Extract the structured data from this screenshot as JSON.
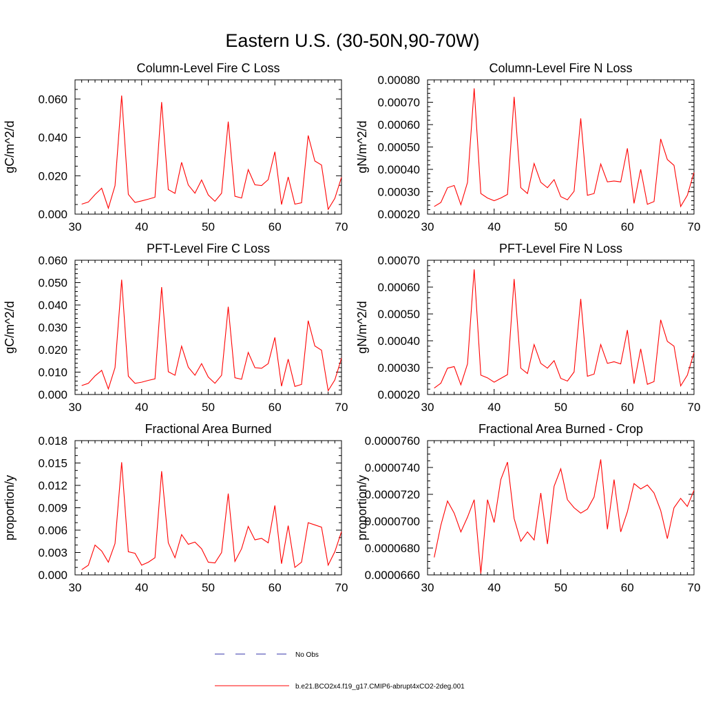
{
  "figure": {
    "title": "Eastern U.S. (30-50N,90-70W)"
  },
  "legend": {
    "items": [
      {
        "label": "No Obs",
        "color": "#3333aa",
        "dash": true
      },
      {
        "label": "b.e21.BCO2x4.f19_g17.CMIP6-abrupt4xCO2-2deg.001",
        "color": "#ff0000",
        "dash": false
      }
    ]
  },
  "chart_data": [
    {
      "type": "line",
      "title": "Column-Level Fire C Loss",
      "ylabel": "gC/m^2/d",
      "xlim": [
        30,
        70
      ],
      "ylim": [
        0,
        0.07
      ],
      "xticks": [
        30,
        40,
        50,
        60,
        70
      ],
      "xtick_labels": [
        "30",
        "40",
        "50",
        "60",
        "70"
      ],
      "yticks": [
        0,
        0.02,
        0.04,
        0.06
      ],
      "ytick_labels": [
        "0.000",
        "0.020",
        "0.040",
        "0.060"
      ],
      "ymin_step": 0.005,
      "series": [
        {
          "color": "#ff0000",
          "x": [
            31,
            32,
            33,
            34,
            35,
            36,
            37,
            38,
            39,
            40,
            41,
            42,
            43,
            44,
            45,
            46,
            47,
            48,
            49,
            50,
            51,
            52,
            53,
            54,
            55,
            56,
            57,
            58,
            59,
            60,
            61,
            62,
            63,
            64,
            65,
            66,
            67,
            68,
            69,
            70
          ],
          "values": [
            0.0052,
            0.0063,
            0.0102,
            0.0135,
            0.0031,
            0.0148,
            0.0618,
            0.0103,
            0.0061,
            0.0069,
            0.0078,
            0.0088,
            0.0584,
            0.0128,
            0.0108,
            0.027,
            0.0152,
            0.0109,
            0.0178,
            0.01,
            0.0067,
            0.0109,
            0.0482,
            0.0093,
            0.0084,
            0.0232,
            0.0153,
            0.0149,
            0.018,
            0.0325,
            0.005,
            0.0194,
            0.0052,
            0.0059,
            0.041,
            0.0277,
            0.0256,
            0.0025,
            0.0082,
            0.0192
          ]
        }
      ]
    },
    {
      "type": "line",
      "title": "Column-Level Fire N Loss",
      "ylabel": "gN/m^2/d",
      "xlim": [
        30,
        70
      ],
      "ylim": [
        0.0002,
        0.0008
      ],
      "xticks": [
        30,
        40,
        50,
        60,
        70
      ],
      "xtick_labels": [
        "30",
        "40",
        "50",
        "60",
        "70"
      ],
      "yticks": [
        0.0002,
        0.0003,
        0.0004,
        0.0005,
        0.0006,
        0.0007,
        0.0008
      ],
      "ytick_labels": [
        "0.00020",
        "0.00030",
        "0.00040",
        "0.00050",
        "0.00060",
        "0.00070",
        "0.00080"
      ],
      "ymin_step": 2e-05,
      "series": [
        {
          "color": "#ff0000",
          "x": [
            31,
            32,
            33,
            34,
            35,
            36,
            37,
            38,
            39,
            40,
            41,
            42,
            43,
            44,
            45,
            46,
            47,
            48,
            49,
            50,
            51,
            52,
            53,
            54,
            55,
            56,
            57,
            58,
            59,
            60,
            61,
            62,
            63,
            64,
            65,
            66,
            67,
            68,
            69,
            70
          ],
          "values": [
            0.000234,
            0.000252,
            0.000318,
            0.000328,
            0.000242,
            0.000342,
            0.000762,
            0.000292,
            0.000272,
            0.00026,
            0.000272,
            0.000288,
            0.000724,
            0.000318,
            0.000292,
            0.000426,
            0.000342,
            0.000318,
            0.000354,
            0.000278,
            0.000264,
            0.000302,
            0.000628,
            0.000284,
            0.000292,
            0.000424,
            0.000344,
            0.000348,
            0.000344,
            0.000494,
            0.000248,
            0.0004,
            0.000244,
            0.000256,
            0.000536,
            0.000444,
            0.000418,
            0.000234,
            0.000284,
            0.000386
          ]
        }
      ]
    },
    {
      "type": "line",
      "title": "PFT-Level Fire C Loss",
      "ylabel": "gC/m^2/d",
      "xlim": [
        30,
        70
      ],
      "ylim": [
        0,
        0.06
      ],
      "xticks": [
        30,
        40,
        50,
        60,
        70
      ],
      "xtick_labels": [
        "30",
        "40",
        "50",
        "60",
        "70"
      ],
      "yticks": [
        0,
        0.01,
        0.02,
        0.03,
        0.04,
        0.05,
        0.06
      ],
      "ytick_labels": [
        "0.000",
        "0.010",
        "0.020",
        "0.030",
        "0.040",
        "0.050",
        "0.060"
      ],
      "ymin_step": 0.002,
      "series": [
        {
          "color": "#ff0000",
          "x": [
            31,
            32,
            33,
            34,
            35,
            36,
            37,
            38,
            39,
            40,
            41,
            42,
            43,
            44,
            45,
            46,
            47,
            48,
            49,
            50,
            51,
            52,
            53,
            54,
            55,
            56,
            57,
            58,
            59,
            60,
            61,
            62,
            63,
            64,
            65,
            66,
            67,
            68,
            69,
            70
          ],
          "values": [
            0.004,
            0.005,
            0.0083,
            0.0108,
            0.0025,
            0.012,
            0.0513,
            0.0082,
            0.005,
            0.0055,
            0.0063,
            0.007,
            0.048,
            0.0102,
            0.0086,
            0.0216,
            0.0122,
            0.0086,
            0.0138,
            0.0078,
            0.005,
            0.0086,
            0.0392,
            0.0075,
            0.0068,
            0.0188,
            0.012,
            0.0117,
            0.0138,
            0.0255,
            0.0037,
            0.0158,
            0.0036,
            0.0045,
            0.033,
            0.0217,
            0.0198,
            0.0017,
            0.0065,
            0.0162
          ]
        }
      ]
    },
    {
      "type": "line",
      "title": "PFT-Level Fire N Loss",
      "ylabel": "gN/m^2/d",
      "xlim": [
        30,
        70
      ],
      "ylim": [
        0.0002,
        0.0007
      ],
      "xticks": [
        30,
        40,
        50,
        60,
        70
      ],
      "xtick_labels": [
        "30",
        "40",
        "50",
        "60",
        "70"
      ],
      "yticks": [
        0.0002,
        0.0003,
        0.0004,
        0.0005,
        0.0006,
        0.0007
      ],
      "ytick_labels": [
        "0.00020",
        "0.00030",
        "0.00040",
        "0.00050",
        "0.00060",
        "0.00070"
      ],
      "ymin_step": 2e-05,
      "series": [
        {
          "color": "#ff0000",
          "x": [
            31,
            32,
            33,
            34,
            35,
            36,
            37,
            38,
            39,
            40,
            41,
            42,
            43,
            44,
            45,
            46,
            47,
            48,
            49,
            50,
            51,
            52,
            53,
            54,
            55,
            56,
            57,
            58,
            59,
            60,
            61,
            62,
            63,
            64,
            65,
            66,
            67,
            68,
            69,
            70
          ],
          "values": [
            0.000224,
            0.000242,
            0.000298,
            0.000304,
            0.000236,
            0.000314,
            0.000666,
            0.000272,
            0.000262,
            0.000246,
            0.00026,
            0.000274,
            0.00063,
            0.000298,
            0.000278,
            0.000386,
            0.000316,
            0.000298,
            0.000326,
            0.00026,
            0.00025,
            0.000284,
            0.000556,
            0.000268,
            0.000276,
            0.000386,
            0.000316,
            0.000322,
            0.000314,
            0.00044,
            0.00024,
            0.00037,
            0.000238,
            0.000248,
            0.000478,
            0.000398,
            0.00038,
            0.000232,
            0.000272,
            0.000356
          ]
        }
      ]
    },
    {
      "type": "line",
      "title": "Fractional Area Burned",
      "ylabel": "proportion/y",
      "xlim": [
        30,
        70
      ],
      "ylim": [
        0,
        0.018
      ],
      "xticks": [
        30,
        40,
        50,
        60,
        70
      ],
      "xtick_labels": [
        "30",
        "40",
        "50",
        "60",
        "70"
      ],
      "yticks": [
        0,
        0.003,
        0.006,
        0.009,
        0.012,
        0.015,
        0.018
      ],
      "ytick_labels": [
        "0.000",
        "0.003",
        "0.006",
        "0.009",
        "0.012",
        "0.015",
        "0.018"
      ],
      "ymin_step": 0.001,
      "series": [
        {
          "color": "#ff0000",
          "x": [
            31,
            32,
            33,
            34,
            35,
            36,
            37,
            38,
            39,
            40,
            41,
            42,
            43,
            44,
            45,
            46,
            47,
            48,
            49,
            50,
            51,
            52,
            53,
            54,
            55,
            56,
            57,
            58,
            59,
            60,
            61,
            62,
            63,
            64,
            65,
            66,
            67,
            68,
            69,
            70
          ],
          "values": [
            0.0007,
            0.0013,
            0.004,
            0.0032,
            0.0017,
            0.0042,
            0.0151,
            0.0031,
            0.0029,
            0.0013,
            0.0017,
            0.0023,
            0.0139,
            0.0043,
            0.0023,
            0.0054,
            0.0041,
            0.0044,
            0.0035,
            0.0017,
            0.0016,
            0.003,
            0.0109,
            0.0018,
            0.0035,
            0.0065,
            0.0047,
            0.0049,
            0.0043,
            0.0093,
            0.0015,
            0.0066,
            0.001,
            0.0017,
            0.007,
            0.0067,
            0.0064,
            0.0013,
            0.0031,
            0.0058
          ]
        }
      ]
    },
    {
      "type": "line",
      "title": "Fractional Area Burned - Crop",
      "ylabel": "proportion/y",
      "xlim": [
        30,
        70
      ],
      "ylim": [
        6.6e-05,
        7.6e-05
      ],
      "xticks": [
        30,
        40,
        50,
        60,
        70
      ],
      "xtick_labels": [
        "30",
        "40",
        "50",
        "60",
        "70"
      ],
      "yticks": [
        6.6e-05,
        6.8e-05,
        7e-05,
        7.2e-05,
        7.4e-05,
        7.6e-05
      ],
      "ytick_labels": [
        "0.0000660",
        "0.0000680",
        "0.0000700",
        "0.0000720",
        "0.0000740",
        "0.0000760"
      ],
      "ymin_step": 5e-07,
      "series": [
        {
          "color": "#ff0000",
          "x": [
            31,
            32,
            33,
            34,
            35,
            36,
            37,
            38,
            39,
            40,
            41,
            42,
            43,
            44,
            45,
            46,
            47,
            48,
            49,
            50,
            51,
            52,
            53,
            54,
            55,
            56,
            57,
            58,
            59,
            60,
            61,
            62,
            63,
            64,
            65,
            66,
            67,
            68,
            69,
            70
          ],
          "values": [
            6.73e-05,
            6.97e-05,
            7.15e-05,
            7.06e-05,
            6.92e-05,
            7.03e-05,
            7.16e-05,
            6.61e-05,
            7.16e-05,
            6.99e-05,
            7.31e-05,
            7.44e-05,
            7.02e-05,
            6.85e-05,
            6.92e-05,
            6.86e-05,
            7.21e-05,
            6.83e-05,
            7.26e-05,
            7.39e-05,
            7.16e-05,
            7.1e-05,
            7.06e-05,
            7.09e-05,
            7.18e-05,
            7.46e-05,
            6.94e-05,
            7.31e-05,
            6.92e-05,
            7.07e-05,
            7.28e-05,
            7.24e-05,
            7.27e-05,
            7.21e-05,
            7.08e-05,
            6.87e-05,
            7.1e-05,
            7.17e-05,
            7.11e-05,
            7.23e-05
          ]
        }
      ]
    }
  ]
}
